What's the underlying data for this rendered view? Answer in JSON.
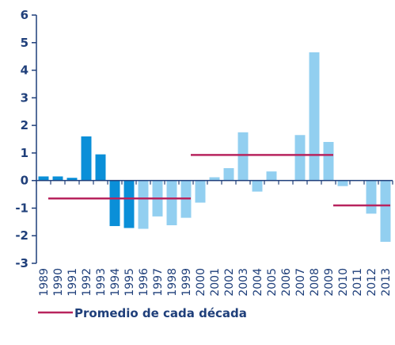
{
  "chart_data": {
    "type": "bar",
    "title": "",
    "xlabel": "",
    "ylabel": "",
    "ylim": [
      -3,
      6
    ],
    "yticks": [
      -3,
      -2,
      -1,
      0,
      1,
      2,
      3,
      4,
      5,
      6
    ],
    "categories": [
      "1989",
      "1990",
      "1991",
      "1992",
      "1993",
      "1994",
      "1995",
      "1996",
      "1997",
      "1998",
      "1999",
      "2000",
      "2001",
      "2002",
      "2003",
      "2004",
      "2005",
      "2006",
      "2007",
      "2008",
      "2009",
      "2010",
      "2011",
      "2012",
      "2013"
    ],
    "values": [
      0.15,
      0.15,
      0.1,
      1.6,
      0.95,
      -1.65,
      -1.72,
      -1.75,
      -1.3,
      -1.62,
      -1.35,
      -0.8,
      0.12,
      0.45,
      1.75,
      -0.4,
      0.33,
      0.0,
      1.65,
      4.65,
      1.4,
      -0.2,
      0.0,
      -1.2,
      -2.22
    ],
    "colors": {
      "highlight": "#0a8fd8",
      "regular": "#92cff0",
      "decade_line": "#b8245e",
      "axis": "#1f3f7a"
    },
    "highlight_categories": [
      "1989",
      "1990",
      "1991",
      "1992",
      "1993",
      "1994",
      "1995"
    ],
    "decade_averages": [
      {
        "from": "1990",
        "to": "1999",
        "value": -0.65
      },
      {
        "from": "2000",
        "to": "2009",
        "value": 0.93
      },
      {
        "from": "2010",
        "to": "2013",
        "value": -0.9
      }
    ],
    "legend": {
      "label": "Promedio de cada década",
      "placement": "bottom-left"
    },
    "grid": false
  }
}
